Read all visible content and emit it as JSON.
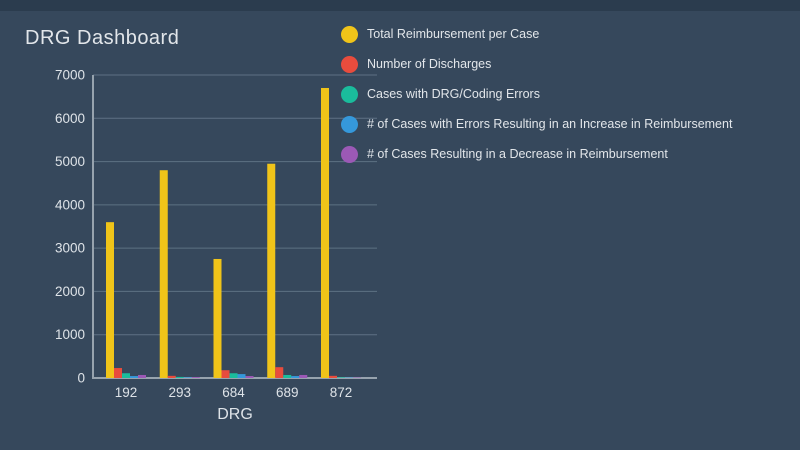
{
  "page": {
    "title": "DRG Dashboard"
  },
  "colors": {
    "background": "#36485C",
    "top_strip": "#2B3C4E",
    "grid": "#5E7183",
    "axis": "#97A3AE",
    "text": "#DEE3E8"
  },
  "chart_data": {
    "type": "bar",
    "title": "DRG Dashboard",
    "xlabel": "DRG",
    "ylabel": "",
    "categories": [
      "192",
      "293",
      "684",
      "689",
      "872"
    ],
    "series": [
      {
        "name": "Total Reimbursement per Case",
        "color": "#F0C419",
        "values": [
          3600,
          4800,
          2750,
          4950,
          6700
        ]
      },
      {
        "name": "Number of Discharges",
        "color": "#E84C3D",
        "values": [
          230,
          50,
          180,
          250,
          50
        ]
      },
      {
        "name": "Cases with DRG/Coding Errors",
        "color": "#1ABC9C",
        "values": [
          110,
          25,
          110,
          70,
          15
        ]
      },
      {
        "name": "# of Cases with Errors Resulting in an Increase in Reimbursement",
        "color": "#3598DB",
        "values": [
          45,
          15,
          90,
          45,
          10
        ]
      },
      {
        "name": "# of Cases Resulting in a Decrease in Reimbursement",
        "color": "#9B59B6",
        "values": [
          70,
          20,
          45,
          70,
          10
        ]
      }
    ],
    "ylim": [
      0,
      7000
    ],
    "yticks": [
      0,
      1000,
      2000,
      3000,
      4000,
      5000,
      6000,
      7000
    ],
    "grid": true,
    "legend_position": "top-right"
  }
}
